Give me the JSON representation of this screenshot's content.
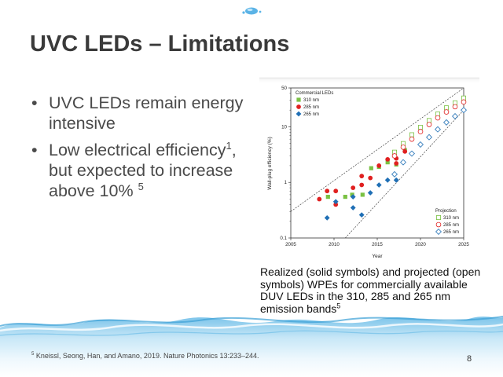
{
  "slide": {
    "title": "UVC LEDs – Limitations",
    "bullets": [
      {
        "text": "UVC LEDs remain energy intensive"
      },
      {
        "text_a": "Low electrical efficiency",
        "sup_a": "1",
        "text_b": ", but expected to increase above 10% ",
        "sup_b": "5"
      }
    ],
    "caption": "Realized (solid symbols) and projected (open symbols) WPEs for commercially available DUV LEDs in the 310, 285 and 265 nm emission bands",
    "caption_sup": "5",
    "footnote_sup": "5",
    "footnote": " Kneissl, Seong, Han, and Amano, 2019. Nature Photonics 13:233–244.",
    "page_number": "8"
  },
  "chart_data": {
    "type": "scatter",
    "xlabel": "Year",
    "ylabel": "Wall-plug efficiency (%)",
    "xlim": [
      2005,
      2025
    ],
    "ylim": [
      0.1,
      50
    ],
    "yscale": "log",
    "x_ticks": [
      "2005",
      "2010",
      "2015",
      "2020",
      "2025"
    ],
    "y_ticks": [
      {
        "value": 0.1,
        "label": "0.1"
      },
      {
        "value": 1,
        "label": "1"
      },
      {
        "value": 10,
        "label": "10"
      },
      {
        "value": 50,
        "label": "50"
      }
    ],
    "legend_realized_title": "Commercial LEDs",
    "legend_projected_title": "Projection",
    "series": [
      {
        "label": "310 nm",
        "color": "#7ac143",
        "shape": "square",
        "filled": true,
        "points": [
          [
            2009.3,
            0.55
          ],
          [
            2011.3,
            0.55
          ],
          [
            2012.1,
            0.6
          ],
          [
            2013.3,
            0.6
          ],
          [
            2014.3,
            1.8
          ],
          [
            2015.2,
            1.9
          ],
          [
            2016.2,
            2.3
          ],
          [
            2017.2,
            2.1
          ],
          [
            2018.2,
            3.8
          ]
        ]
      },
      {
        "label": "285 nm",
        "color": "#e02020",
        "shape": "circle",
        "filled": true,
        "points": [
          [
            2008.3,
            0.5
          ],
          [
            2009.2,
            0.7
          ],
          [
            2010.2,
            0.7
          ],
          [
            2010.2,
            0.4
          ],
          [
            2012.2,
            0.8
          ],
          [
            2013.2,
            0.9
          ],
          [
            2013.2,
            1.3
          ],
          [
            2014.2,
            1.2
          ],
          [
            2015.2,
            2.0
          ],
          [
            2016.2,
            2.6
          ],
          [
            2017.2,
            2.7
          ],
          [
            2017.2,
            2.2
          ],
          [
            2018.2,
            3.6
          ]
        ]
      },
      {
        "label": "265 nm",
        "color": "#1f6fb5",
        "shape": "diamond",
        "filled": true,
        "points": [
          [
            2009.2,
            0.23
          ],
          [
            2010.2,
            0.45
          ],
          [
            2012.2,
            0.35
          ],
          [
            2012.2,
            0.55
          ],
          [
            2013.2,
            0.26
          ],
          [
            2014.2,
            0.65
          ],
          [
            2015.2,
            0.9
          ],
          [
            2016.2,
            1.1
          ],
          [
            2017.2,
            1.1
          ]
        ]
      },
      {
        "label": "310 nm",
        "color": "#7ac143",
        "shape": "square",
        "filled": false,
        "points": [
          [
            2017,
            3.5
          ],
          [
            2018,
            5.0
          ],
          [
            2019,
            7.2
          ],
          [
            2020,
            9.8
          ],
          [
            2021,
            13
          ],
          [
            2022,
            17
          ],
          [
            2023,
            22
          ],
          [
            2024,
            27
          ],
          [
            2025,
            33
          ]
        ]
      },
      {
        "label": "285 nm",
        "color": "#e02020",
        "shape": "circle",
        "filled": false,
        "points": [
          [
            2017,
            3.0
          ],
          [
            2018,
            4.3
          ],
          [
            2019,
            6.0
          ],
          [
            2020,
            8.2
          ],
          [
            2021,
            11
          ],
          [
            2022,
            14.5
          ],
          [
            2023,
            18.5
          ],
          [
            2024,
            23
          ],
          [
            2025,
            28
          ]
        ]
      },
      {
        "label": "265 nm",
        "color": "#1f6fb5",
        "shape": "diamond",
        "filled": false,
        "points": [
          [
            2017,
            1.4
          ],
          [
            2018,
            2.3
          ],
          [
            2019,
            3.3
          ],
          [
            2020,
            4.8
          ],
          [
            2021,
            6.5
          ],
          [
            2022,
            9
          ],
          [
            2023,
            12
          ],
          [
            2024,
            15.5
          ],
          [
            2025,
            20
          ]
        ]
      }
    ],
    "guide_lines": [
      {
        "from": [
          2005,
          0.3
        ],
        "to": [
          2025,
          50
        ]
      },
      {
        "from": [
          2011.3,
          0.1
        ],
        "to": [
          2025,
          20
        ]
      }
    ]
  }
}
